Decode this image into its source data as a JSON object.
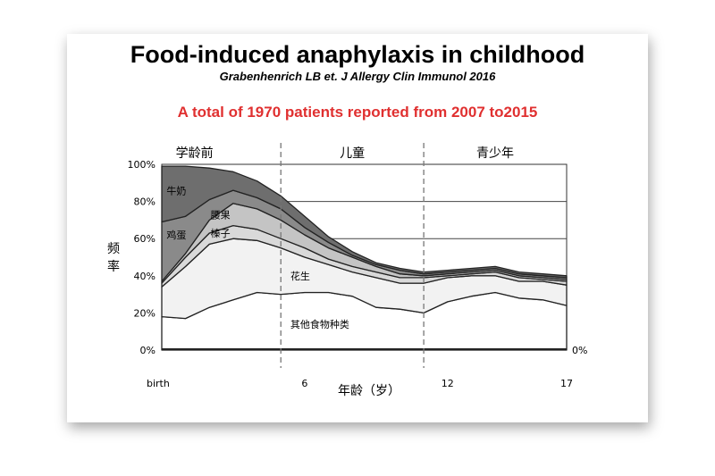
{
  "title": "Food-induced anaphylaxis in childhood",
  "subtitle": "Grabenhenrich LB et. J Allergy Clin Immunol 2016",
  "headline": "A total of 1970 patients reported from 2007 to2015",
  "colors": {
    "headline": "#e03030"
  },
  "chart_data": {
    "type": "area",
    "ylabel": "频率",
    "xlabel": "年龄（岁）",
    "x": [
      0,
      1,
      2,
      3,
      4,
      5,
      6,
      7,
      8,
      9,
      10,
      11,
      12,
      13,
      14,
      15,
      16,
      17
    ],
    "x_tick_labels": [
      {
        "x": 0,
        "label": "birth"
      },
      {
        "x": 6,
        "label": "6"
      },
      {
        "x": 12,
        "label": "12"
      },
      {
        "x": 17,
        "label": "17"
      }
    ],
    "y_tick_labels": [
      "0%",
      "20%",
      "40%",
      "60%",
      "80%",
      "100%"
    ],
    "ylim": [
      0,
      100
    ],
    "right_label": "0%",
    "age_groups": [
      {
        "label": "学龄前",
        "from": 0,
        "to": 5
      },
      {
        "label": "儿童",
        "from": 5,
        "to": 11
      },
      {
        "label": "青少年",
        "from": 11,
        "to": 17
      }
    ],
    "divider_ages": [
      5,
      11
    ],
    "series": [
      {
        "name": "其他食物种类",
        "fill": "#ffffff",
        "lower": [
          0,
          0,
          0,
          0,
          0,
          0,
          0,
          0,
          0,
          0,
          0,
          0,
          0,
          0,
          0,
          0,
          0,
          0
        ],
        "upper": [
          18,
          17,
          23,
          27,
          31,
          30,
          31,
          31,
          29,
          23,
          22,
          20,
          26,
          29,
          31,
          28,
          27,
          24
        ]
      },
      {
        "name": "花生",
        "fill": "#f2f2f2",
        "lower": [
          18,
          17,
          23,
          27,
          31,
          30,
          31,
          31,
          29,
          23,
          22,
          20,
          26,
          29,
          31,
          28,
          27,
          24
        ],
        "upper": [
          34,
          45,
          57,
          60,
          59,
          55,
          50,
          46,
          42,
          39,
          36,
          36,
          39,
          40,
          40,
          37,
          37,
          35
        ]
      },
      {
        "name": "榛子",
        "fill": "#d9d9d9",
        "lower": [
          34,
          45,
          57,
          60,
          59,
          55,
          50,
          46,
          42,
          39,
          36,
          36,
          39,
          40,
          40,
          37,
          37,
          35
        ],
        "upper": [
          36,
          50,
          63,
          67,
          65,
          60,
          55,
          49,
          45,
          42,
          39,
          39,
          40,
          41,
          42,
          39,
          38,
          37
        ]
      },
      {
        "name": "腰果",
        "fill": "#c4c4c4",
        "lower": [
          36,
          50,
          63,
          67,
          65,
          60,
          55,
          49,
          45,
          42,
          39,
          39,
          40,
          41,
          42,
          39,
          38,
          37
        ],
        "upper": [
          37,
          52,
          70,
          79,
          76,
          70,
          62,
          55,
          50,
          45,
          41,
          40,
          41,
          42,
          43,
          40,
          39,
          38
        ]
      },
      {
        "name": "鸡蛋",
        "fill": "#8a8a8a",
        "lower": [
          37,
          52,
          70,
          79,
          76,
          70,
          62,
          55,
          50,
          45,
          41,
          40,
          41,
          42,
          43,
          40,
          39,
          38
        ],
        "upper": [
          69,
          72,
          81,
          86,
          82,
          76,
          66,
          58,
          51,
          46,
          43,
          41,
          42,
          43,
          44,
          41,
          40,
          39
        ]
      },
      {
        "name": "牛奶",
        "fill": "#6e6e6e",
        "lower": [
          69,
          72,
          81,
          86,
          82,
          76,
          66,
          58,
          51,
          46,
          43,
          41,
          42,
          43,
          44,
          41,
          40,
          39
        ],
        "upper": [
          99,
          99,
          98,
          96,
          91,
          83,
          72,
          61,
          53,
          47,
          44,
          42,
          43,
          44,
          45,
          42,
          41,
          40
        ]
      }
    ],
    "series_labels": [
      {
        "text": "牛奶",
        "x": 0.2,
        "y": 84
      },
      {
        "text": "鸡蛋",
        "x": 0.2,
        "y": 60
      },
      {
        "text": "腰果",
        "x": 2.05,
        "y": 71
      },
      {
        "text": "榛子",
        "x": 2.05,
        "y": 61
      },
      {
        "text": "花生",
        "x": 5.4,
        "y": 38
      },
      {
        "text": "其他食物种类",
        "x": 5.4,
        "y": 12
      }
    ],
    "grid": true
  }
}
